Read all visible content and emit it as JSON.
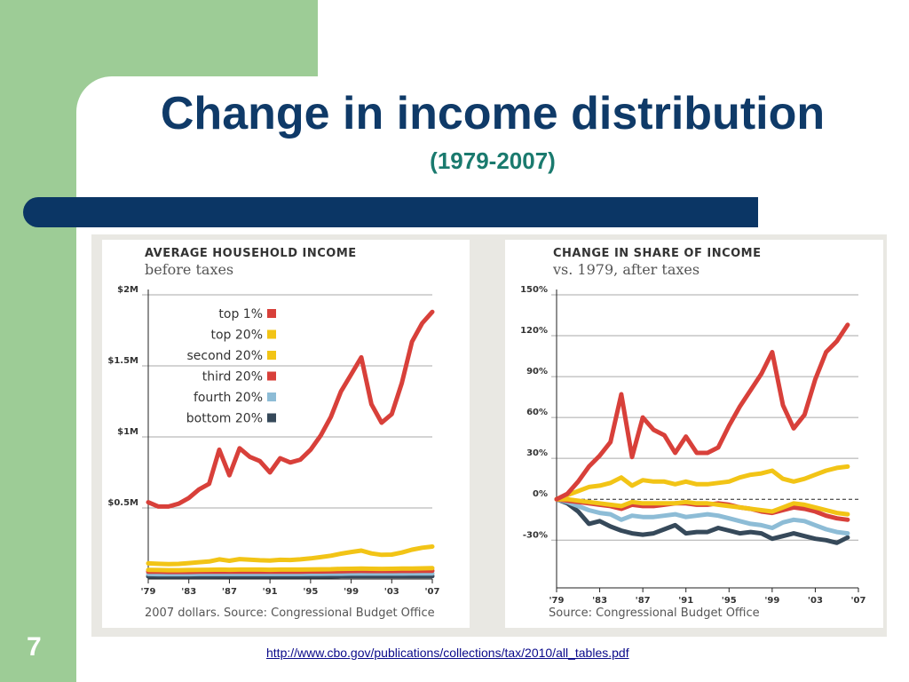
{
  "slide": {
    "title": "Change in income distribution",
    "subtitle": "(1979-2007)",
    "page_number": "7",
    "link": "http://www.cbo.gov/publications/collections/tax/2010/all_tables.pdf"
  },
  "chart_data": [
    {
      "type": "line",
      "title": "AVERAGE HOUSEHOLD INCOME",
      "subtitle": "before taxes",
      "source": "2007 dollars. Source: Congressional Budget Office",
      "x": [
        1979,
        1980,
        1981,
        1982,
        1983,
        1984,
        1985,
        1986,
        1987,
        1988,
        1989,
        1990,
        1991,
        1992,
        1993,
        1994,
        1995,
        1996,
        1997,
        1998,
        1999,
        2000,
        2001,
        2002,
        2003,
        2004,
        2005,
        2006,
        2007
      ],
      "x_tick_labels": [
        "'79",
        "'83",
        "'87",
        "'91",
        "'95",
        "'99",
        "'03",
        "'07"
      ],
      "x_ticks": [
        1979,
        1983,
        1987,
        1991,
        1995,
        1999,
        2003,
        2007
      ],
      "y_tick_labels": [
        "$0.5M",
        "$1M",
        "$1.5M",
        "$2M"
      ],
      "y_ticks": [
        0.5,
        1,
        1.5,
        2
      ],
      "ylim": [
        0,
        2
      ],
      "legend_position": "top-center",
      "series": [
        {
          "name": "top 1%",
          "color": "#d8403a",
          "values": [
            0.54,
            0.51,
            0.51,
            0.53,
            0.57,
            0.63,
            0.67,
            0.91,
            0.73,
            0.92,
            0.86,
            0.83,
            0.75,
            0.85,
            0.82,
            0.84,
            0.91,
            1.01,
            1.14,
            1.32,
            1.44,
            1.56,
            1.23,
            1.1,
            1.16,
            1.38,
            1.67,
            1.8,
            1.88
          ]
        },
        {
          "name": "top 20%",
          "color": "#f2c416",
          "values": [
            0.11,
            0.107,
            0.105,
            0.106,
            0.112,
            0.118,
            0.123,
            0.138,
            0.128,
            0.14,
            0.136,
            0.132,
            0.13,
            0.135,
            0.134,
            0.138,
            0.145,
            0.154,
            0.164,
            0.178,
            0.19,
            0.2,
            0.18,
            0.17,
            0.172,
            0.186,
            0.206,
            0.22,
            0.228
          ]
        },
        {
          "name": "second 20%",
          "color": "#f2c416",
          "values": [
            0.064,
            0.063,
            0.062,
            0.062,
            0.063,
            0.064,
            0.065,
            0.066,
            0.065,
            0.066,
            0.066,
            0.066,
            0.065,
            0.066,
            0.066,
            0.066,
            0.067,
            0.068,
            0.069,
            0.071,
            0.072,
            0.073,
            0.072,
            0.071,
            0.072,
            0.073,
            0.074,
            0.075,
            0.076
          ]
        },
        {
          "name": "third 20%",
          "color": "#d8403a",
          "values": [
            0.052,
            0.051,
            0.05,
            0.05,
            0.05,
            0.051,
            0.052,
            0.052,
            0.052,
            0.052,
            0.052,
            0.052,
            0.051,
            0.052,
            0.052,
            0.052,
            0.053,
            0.053,
            0.054,
            0.055,
            0.056,
            0.057,
            0.056,
            0.056,
            0.056,
            0.057,
            0.057,
            0.058,
            0.058
          ]
        },
        {
          "name": "fourth 20%",
          "color": "#8dbcd6",
          "values": [
            0.035,
            0.034,
            0.034,
            0.034,
            0.034,
            0.035,
            0.035,
            0.035,
            0.035,
            0.035,
            0.035,
            0.035,
            0.035,
            0.035,
            0.035,
            0.035,
            0.036,
            0.036,
            0.037,
            0.037,
            0.038,
            0.038,
            0.038,
            0.038,
            0.038,
            0.038,
            0.039,
            0.039,
            0.039
          ]
        },
        {
          "name": "bottom 20%",
          "color": "#36495a",
          "values": [
            0.018,
            0.018,
            0.017,
            0.017,
            0.017,
            0.017,
            0.017,
            0.018,
            0.018,
            0.018,
            0.018,
            0.018,
            0.018,
            0.018,
            0.018,
            0.018,
            0.018,
            0.019,
            0.019,
            0.02,
            0.02,
            0.02,
            0.02,
            0.02,
            0.02,
            0.02,
            0.02,
            0.02,
            0.02
          ]
        }
      ]
    },
    {
      "type": "line",
      "title": "CHANGE IN SHARE OF INCOME",
      "subtitle": "vs. 1979, after taxes",
      "source": "Source: Congressional Budget Office",
      "x": [
        1979,
        1980,
        1981,
        1982,
        1983,
        1984,
        1985,
        1986,
        1987,
        1988,
        1989,
        1990,
        1991,
        1992,
        1993,
        1994,
        1995,
        1996,
        1997,
        1998,
        1999,
        2000,
        2001,
        2002,
        2003,
        2004,
        2005,
        2006,
        2007
      ],
      "x_tick_labels": [
        "'79",
        "'83",
        "'87",
        "'91",
        "'95",
        "'99",
        "'03",
        "'07"
      ],
      "x_ticks": [
        1979,
        1983,
        1987,
        1991,
        1995,
        1999,
        2003,
        2007
      ],
      "y_tick_labels": [
        "-30%",
        "0%",
        "30%",
        "60%",
        "90%",
        "120%",
        "150%"
      ],
      "y_ticks": [
        -30,
        0,
        30,
        60,
        90,
        120,
        150
      ],
      "ylim": [
        -65,
        150
      ],
      "zero_line": "dashed",
      "series": [
        {
          "name": "top 1%",
          "color": "#d8403a",
          "values": [
            0,
            4,
            13,
            24,
            32,
            42,
            77,
            31,
            60,
            51,
            47,
            34,
            46,
            34,
            34,
            38,
            54,
            68,
            80,
            92,
            108,
            69,
            52,
            62,
            88,
            108,
            116,
            128,
            null
          ]
        },
        {
          "name": "top 20%",
          "color": "#f2c416",
          "values": [
            0,
            3,
            6,
            9,
            10,
            12,
            16,
            10,
            14,
            13,
            13,
            11,
            13,
            11,
            11,
            12,
            13,
            16,
            18,
            19,
            21,
            15,
            13,
            15,
            18,
            21,
            23,
            24,
            null
          ]
        },
        {
          "name": "second 20%",
          "color": "#f2c416",
          "values": [
            0,
            0,
            -1,
            -2,
            -3,
            -4,
            -5,
            -2,
            -3,
            -3,
            -3,
            -3,
            -2,
            -3,
            -3,
            -4,
            -5,
            -6,
            -7,
            -8,
            -9,
            -6,
            -3,
            -4,
            -6,
            -8,
            -10,
            -11,
            null
          ]
        },
        {
          "name": "third 20%",
          "color": "#d8403a",
          "values": [
            0,
            -1,
            -2,
            -3,
            -4,
            -5,
            -7,
            -4,
            -5,
            -5,
            -4,
            -3,
            -3,
            -4,
            -4,
            -3,
            -4,
            -6,
            -7,
            -9,
            -10,
            -8,
            -6,
            -7,
            -9,
            -12,
            -14,
            -15,
            null
          ]
        },
        {
          "name": "fourth 20%",
          "color": "#8dbcd6",
          "values": [
            0,
            -2,
            -5,
            -8,
            -10,
            -11,
            -15,
            -12,
            -13,
            -13,
            -12,
            -11,
            -13,
            -12,
            -11,
            -12,
            -14,
            -16,
            -18,
            -19,
            -21,
            -17,
            -15,
            -16,
            -19,
            -22,
            -24,
            -25,
            null
          ]
        },
        {
          "name": "bottom 20%",
          "color": "#36495a",
          "values": [
            0,
            -3,
            -9,
            -18,
            -16,
            -20,
            -23,
            -25,
            -26,
            -25,
            -22,
            -19,
            -25,
            -24,
            -24,
            -21,
            -23,
            -25,
            -24,
            -25,
            -29,
            -27,
            -25,
            -27,
            -29,
            -30,
            -32,
            -28,
            null
          ]
        }
      ]
    }
  ]
}
